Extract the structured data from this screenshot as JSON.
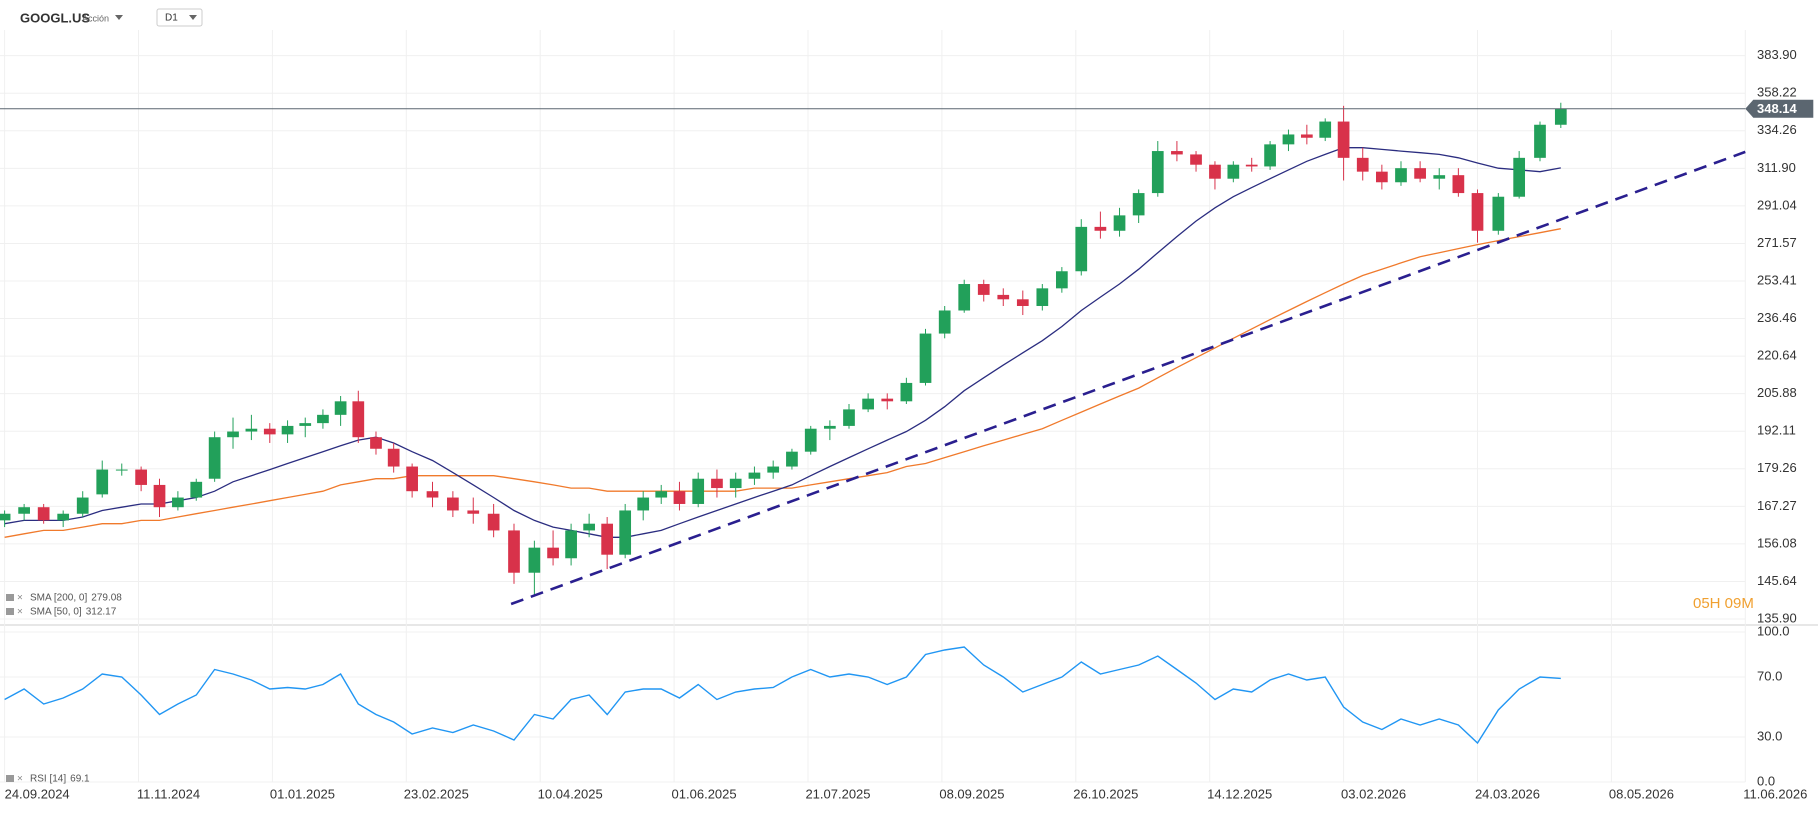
{
  "chart_data": [
    {
      "type": "candlestick",
      "title": "GOOGL.US",
      "subtitle": "Acción",
      "timeframe": "D1",
      "x": [
        "2024-09-24",
        "2024-10-01",
        "2024-10-08",
        "2024-10-15",
        "2024-10-22",
        "2024-10-29",
        "2024-11-05",
        "2024-11-12",
        "2024-11-19",
        "2024-11-26",
        "2024-12-03",
        "2024-12-10",
        "2024-12-17",
        "2024-12-24",
        "2024-12-31",
        "2025-01-07",
        "2025-01-14",
        "2025-01-21",
        "2025-01-28",
        "2025-02-04",
        "2025-02-11",
        "2025-02-18",
        "2025-02-25",
        "2025-03-04",
        "2025-03-11",
        "2025-03-18",
        "2025-03-25",
        "2025-04-01",
        "2025-04-08",
        "2025-04-15",
        "2025-04-22",
        "2025-04-29",
        "2025-05-06",
        "2025-05-13",
        "2025-05-20",
        "2025-05-27",
        "2025-06-03",
        "2025-06-10",
        "2025-06-17",
        "2025-06-24",
        "2025-07-01",
        "2025-07-08",
        "2025-07-15",
        "2025-07-22",
        "2025-07-29",
        "2025-08-05",
        "2025-08-12",
        "2025-08-19",
        "2025-08-26",
        "2025-09-02",
        "2025-09-09",
        "2025-09-16",
        "2025-09-23",
        "2025-09-30",
        "2025-10-07",
        "2025-10-14",
        "2025-10-21",
        "2025-10-28",
        "2025-11-04",
        "2025-11-11",
        "2025-11-18",
        "2025-11-25",
        "2025-12-02",
        "2025-12-09",
        "2025-12-16",
        "2025-12-23",
        "2025-12-30",
        "2026-01-06",
        "2026-01-13",
        "2026-01-20",
        "2026-01-27",
        "2026-02-03",
        "2026-02-10",
        "2026-02-17",
        "2026-02-24",
        "2026-03-03",
        "2026-03-10",
        "2026-03-17",
        "2026-03-24",
        "2026-03-31",
        "2026-04-07",
        "2026-04-14",
        "2026-04-21"
      ],
      "open": [
        163,
        165,
        167,
        163,
        165,
        171,
        179,
        179,
        174,
        167,
        170,
        176,
        190,
        192,
        193,
        191,
        194,
        195,
        198,
        203,
        190,
        186,
        180,
        172,
        170,
        166,
        165,
        160,
        148,
        155,
        152,
        160,
        162,
        153,
        166,
        170,
        172,
        168,
        176,
        173,
        176,
        178,
        180,
        185,
        193,
        194,
        200,
        204,
        203,
        210,
        230,
        240,
        252,
        247,
        245,
        242,
        250,
        258,
        280,
        278,
        286,
        298,
        322,
        320,
        314,
        306,
        314,
        313,
        326,
        332,
        330,
        340,
        318,
        310,
        304,
        312,
        306,
        308,
        298,
        278,
        296,
        318,
        338
      ],
      "high": [
        166,
        168,
        168,
        166,
        172,
        182,
        181,
        180,
        176,
        172,
        176,
        192,
        197,
        198,
        195,
        196,
        197,
        200,
        205,
        207,
        192,
        188,
        181,
        175,
        172,
        170,
        168,
        162,
        157,
        160,
        162,
        165,
        164,
        168,
        172,
        174,
        175,
        178,
        179,
        178,
        180,
        182,
        186,
        194,
        196,
        202,
        206,
        206,
        212,
        232,
        242,
        254,
        254,
        250,
        249,
        252,
        260,
        284,
        288,
        290,
        300,
        328,
        328,
        322,
        316,
        316,
        318,
        328,
        335,
        338,
        342,
        350,
        324,
        314,
        316,
        316,
        312,
        312,
        300,
        298,
        322,
        340,
        352
      ],
      "low": [
        161,
        163,
        162,
        161,
        164,
        170,
        177,
        172,
        164,
        166,
        169,
        175,
        186,
        189,
        188,
        188,
        190,
        193,
        194,
        188,
        184,
        178,
        170,
        167,
        164,
        162,
        158,
        145,
        142,
        150,
        150,
        158,
        149,
        152,
        163,
        168,
        166,
        167,
        170,
        170,
        174,
        176,
        179,
        184,
        189,
        193,
        199,
        200,
        202,
        209,
        228,
        239,
        244,
        242,
        238,
        240,
        248,
        256,
        274,
        275,
        282,
        296,
        316,
        310,
        300,
        304,
        310,
        311,
        322,
        326,
        328,
        305,
        305,
        300,
        302,
        304,
        300,
        296,
        272,
        276,
        295,
        316,
        336
      ],
      "close": [
        165,
        167,
        163,
        165,
        170,
        179,
        179,
        174,
        167,
        170,
        175,
        190,
        192,
        193,
        191,
        194,
        195,
        198,
        203,
        190,
        186,
        180,
        172,
        170,
        166,
        165,
        160,
        148,
        155,
        152,
        160,
        162,
        153,
        166,
        170,
        172,
        168,
        176,
        173,
        176,
        178,
        180,
        185,
        193,
        194,
        200,
        204,
        203,
        210,
        230,
        240,
        252,
        247,
        245,
        242,
        250,
        258,
        280,
        278,
        286,
        298,
        322,
        320,
        314,
        306,
        314,
        313,
        326,
        332,
        330,
        340,
        318,
        310,
        304,
        312,
        306,
        308,
        298,
        278,
        296,
        318,
        338,
        348.14
      ],
      "up_color": "#22a05a",
      "down_color": "#d8324a",
      "series": [
        {
          "name": "SMA [200, 0]",
          "color": "#f07a2c",
          "values": [
            158,
            159,
            160,
            160,
            161,
            162,
            162,
            163,
            163,
            164,
            165,
            166,
            167,
            168,
            169,
            170,
            171,
            172,
            174,
            175,
            176,
            176,
            177,
            177,
            177,
            177,
            177,
            176,
            175,
            174,
            173,
            173,
            172,
            172,
            172,
            172,
            172,
            172,
            172,
            172,
            173,
            173,
            173,
            174,
            175,
            176,
            177,
            178,
            180,
            181,
            183,
            185,
            187,
            189,
            191,
            193,
            196,
            199,
            202,
            205,
            208,
            212,
            216,
            220,
            224,
            228,
            232,
            236,
            240,
            244,
            248,
            252,
            256,
            259,
            262,
            265,
            267,
            269,
            271,
            273,
            275,
            277,
            279.08
          ]
        },
        {
          "name": "SMA [50, 0]",
          "color": "#2b2d80",
          "values": [
            162,
            163,
            163,
            163,
            164,
            166,
            167,
            168,
            168,
            169,
            170,
            172,
            175,
            177,
            179,
            181,
            183,
            185,
            187,
            189,
            190,
            188,
            185,
            182,
            178,
            174,
            170,
            166,
            163,
            161,
            160,
            159,
            158,
            158,
            159,
            160,
            162,
            164,
            166,
            168,
            170,
            172,
            174,
            177,
            180,
            183,
            186,
            189,
            192,
            196,
            201,
            207,
            212,
            217,
            222,
            227,
            233,
            240,
            246,
            252,
            259,
            267,
            275,
            283,
            290,
            296,
            301,
            306,
            311,
            316,
            320,
            324,
            324,
            323,
            322,
            321,
            320,
            318,
            315,
            312,
            311,
            310,
            312.17
          ]
        }
      ],
      "xlim": [
        "2024-09-24",
        "2026-06-11"
      ],
      "xticks": [
        {
          "value": "2024-09-24",
          "label": "24.09.2024"
        },
        {
          "value": "2024-11-11",
          "label": "11.11.2024"
        },
        {
          "value": "2025-01-01",
          "label": "01.01.2025"
        },
        {
          "value": "2025-02-23",
          "label": "23.02.2025"
        },
        {
          "value": "2025-04-10",
          "label": "10.04.2025"
        },
        {
          "value": "2025-06-01",
          "label": "01.06.2025"
        },
        {
          "value": "2025-07-21",
          "label": "21.07.2025"
        },
        {
          "value": "2025-09-08",
          "label": "08.09.2025"
        },
        {
          "value": "2025-10-26",
          "label": "26.10.2025"
        },
        {
          "value": "2025-12-14",
          "label": "14.12.2025"
        },
        {
          "value": "2026-02-03",
          "label": "03.02.2026"
        },
        {
          "value": "2026-03-24",
          "label": "24.03.2026"
        },
        {
          "value": "2026-05-08",
          "label": "08.05.2026"
        },
        {
          "value": "2026-06-11",
          "label": "11.06.2026"
        }
      ],
      "ylim": [
        134.65,
        425.4
      ],
      "log_scale": true,
      "grid": true,
      "yticks": [
        {
          "value": 383.9,
          "label": "383.90"
        },
        358.22,
        334.26,
        {
          "value": 311.9,
          "label": "311.90"
        },
        291.04,
        271.57,
        253.41,
        236.46,
        220.64,
        205.88,
        192.11,
        179.26,
        167.27,
        156.08,
        145.64,
        {
          "value": 135.9,
          "label": "135.90"
        }
      ],
      "trendline": {
        "color": "#2a1f8f",
        "start": {
          "x": "2025-03-31",
          "y": 139.7
        },
        "end": {
          "x": "2026-06-11",
          "y": 321.5
        }
      },
      "last_price_color": "#5b6670",
      "countdown": "05H 09M",
      "legend": "bottom-left"
    },
    {
      "type": "line",
      "x": [
        "2024-09-24",
        "2024-10-01",
        "2024-10-08",
        "2024-10-15",
        "2024-10-22",
        "2024-10-29",
        "2024-11-05",
        "2024-11-12",
        "2024-11-19",
        "2024-11-26",
        "2024-12-03",
        "2024-12-10",
        "2024-12-17",
        "2024-12-24",
        "2024-12-31",
        "2025-01-07",
        "2025-01-14",
        "2025-01-21",
        "2025-01-28",
        "2025-02-04",
        "2025-02-11",
        "2025-02-18",
        "2025-02-25",
        "2025-03-04",
        "2025-03-11",
        "2025-03-18",
        "2025-03-25",
        "2025-04-01",
        "2025-04-08",
        "2025-04-15",
        "2025-04-22",
        "2025-04-29",
        "2025-05-06",
        "2025-05-13",
        "2025-05-20",
        "2025-05-27",
        "2025-06-03",
        "2025-06-10",
        "2025-06-17",
        "2025-06-24",
        "2025-07-01",
        "2025-07-08",
        "2025-07-15",
        "2025-07-22",
        "2025-07-29",
        "2025-08-05",
        "2025-08-12",
        "2025-08-19",
        "2025-08-26",
        "2025-09-02",
        "2025-09-09",
        "2025-09-16",
        "2025-09-23",
        "2025-09-30",
        "2025-10-07",
        "2025-10-14",
        "2025-10-21",
        "2025-10-28",
        "2025-11-04",
        "2025-11-11",
        "2025-11-18",
        "2025-11-25",
        "2025-12-02",
        "2025-12-09",
        "2025-12-16",
        "2025-12-23",
        "2025-12-30",
        "2026-01-06",
        "2026-01-13",
        "2026-01-20",
        "2026-01-27",
        "2026-02-03",
        "2026-02-10",
        "2026-02-17",
        "2026-02-24",
        "2026-03-03",
        "2026-03-10",
        "2026-03-17",
        "2026-03-24",
        "2026-03-31",
        "2026-04-07",
        "2026-04-14",
        "2026-04-21"
      ],
      "series": [
        {
          "name": "RSI [14]",
          "color": "#2196f3",
          "values": [
            55,
            62,
            52,
            56,
            62,
            72,
            70,
            58,
            45,
            52,
            58,
            75,
            72,
            68,
            62,
            63,
            62,
            65,
            72,
            52,
            45,
            40,
            32,
            36,
            33,
            38,
            34,
            28,
            45,
            42,
            55,
            58,
            45,
            60,
            62,
            62,
            56,
            65,
            55,
            60,
            62,
            63,
            70,
            75,
            70,
            72,
            70,
            65,
            70,
            85,
            88,
            90,
            78,
            70,
            60,
            65,
            70,
            80,
            72,
            75,
            78,
            84,
            75,
            66,
            55,
            62,
            60,
            68,
            72,
            68,
            70,
            50,
            40,
            35,
            42,
            38,
            42,
            38,
            26,
            48,
            62,
            70,
            69.1
          ]
        }
      ],
      "ylim": [
        0,
        100
      ],
      "yticks": [
        {
          "value": 100,
          "label": "100.0"
        },
        {
          "value": 70,
          "label": "70.0"
        },
        {
          "value": 30,
          "label": "30.0"
        },
        {
          "value": 0,
          "label": "0.0"
        }
      ]
    }
  ]
}
